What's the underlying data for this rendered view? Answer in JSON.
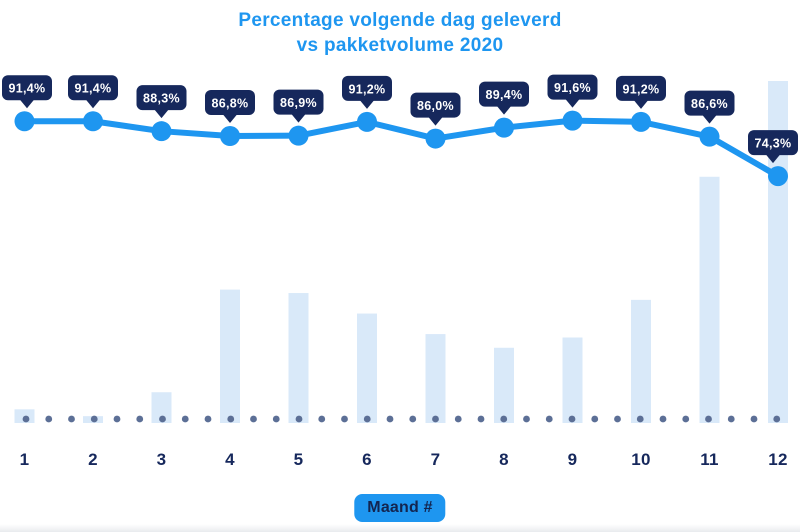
{
  "title": {
    "line1": "Percentage volgende dag geleverd",
    "line2": "vs pakketvolume 2020"
  },
  "x_axis": {
    "label": "Maand #",
    "ticks": [
      "1",
      "2",
      "3",
      "4",
      "5",
      "6",
      "7",
      "8",
      "9",
      "10",
      "11",
      "12"
    ]
  },
  "chart_data": {
    "type": "combo-line-bar",
    "title": "Percentage volgende dag geleverd vs pakketvolume 2020",
    "xlabel": "Maand #",
    "ylabel": "",
    "categories": [
      "1",
      "2",
      "3",
      "4",
      "5",
      "6",
      "7",
      "8",
      "9",
      "10",
      "11",
      "12"
    ],
    "series": [
      {
        "name": "percentage-volgende-dag-geleverd",
        "type": "line",
        "unit": "%",
        "values": [
          91.4,
          91.4,
          88.3,
          86.8,
          86.9,
          91.2,
          86.0,
          89.4,
          91.6,
          91.2,
          86.6,
          74.3
        ],
        "labels": [
          "91,4%",
          "91,4%",
          "88,3%",
          "86,8%",
          "86,9%",
          "91,2%",
          "86,0%",
          "89,4%",
          "91,6%",
          "91,2%",
          "86,6%",
          "74,3%"
        ]
      },
      {
        "name": "pakketvolume-relatief",
        "type": "bar",
        "unit": "relative-index-max-100",
        "values": [
          4,
          2,
          9,
          39,
          38,
          32,
          26,
          22,
          25,
          36,
          72,
          100
        ]
      }
    ],
    "legend": "none",
    "grid": "off",
    "baseline_style": "dotted"
  },
  "colors": {
    "accent_blue": "#1E96F0",
    "navy": "#16285C",
    "bar_fill": "#D9E9F9",
    "baseline_dot": "#5C6F96",
    "callout_text": "#FFFFFF",
    "background": "#FFFFFF"
  }
}
